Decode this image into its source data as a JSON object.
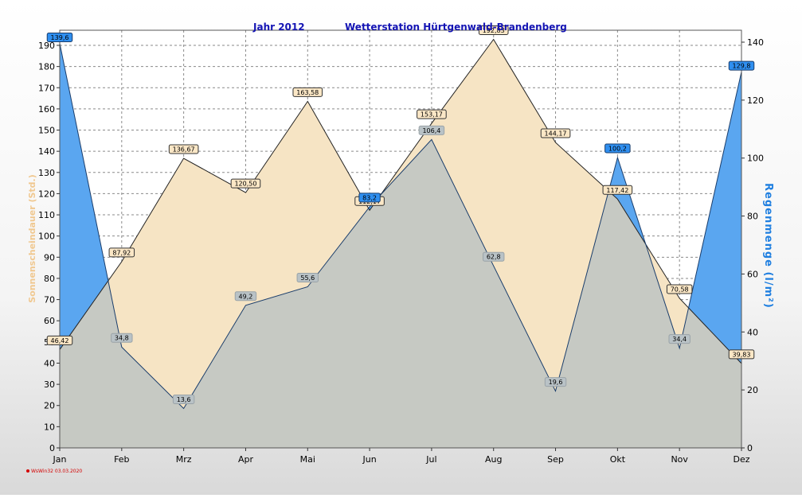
{
  "title_year": "Jahr  2012",
  "title_station": "Wetterstation Hürtgenwald-Brandenberg",
  "left_axis_label": "Sonnenscheindauer (Std.)",
  "right_axis_label": "Regenmenge  (l/m²)",
  "footer": "WsWin32  03.03.2020",
  "colors": {
    "sun_fill": "#f6e4c4",
    "rain_fill": "#5aa6f0",
    "overlap_fill": "#c6c9c3",
    "title": "#1414b4",
    "right_axis_label": "#1f7fe0",
    "left_axis_label": "#f0c890"
  },
  "chart_data": {
    "type": "area",
    "categories": [
      "Jan",
      "Feb",
      "Mrz",
      "Apr",
      "Mai",
      "Jun",
      "Jul",
      "Aug",
      "Sep",
      "Okt",
      "Nov",
      "Dez"
    ],
    "series": [
      {
        "name": "Sonnenscheindauer",
        "axis": "left",
        "values": [
          46.42,
          87.92,
          136.67,
          120.5,
          163.58,
          112.17,
          153.17,
          192.83,
          144.17,
          117.42,
          70.58,
          39.83
        ],
        "labels": [
          "46,42",
          "87,92",
          "136,67",
          "120,50",
          "163,58",
          "112,17",
          "153,17",
          "192,83",
          "144,17",
          "117,42",
          "70,58",
          "39,83"
        ]
      },
      {
        "name": "Regenmenge",
        "axis": "right",
        "values": [
          139.6,
          34.8,
          13.6,
          49.2,
          55.6,
          83.2,
          106.4,
          62.8,
          19.6,
          100.2,
          34.4,
          129.8
        ],
        "labels": [
          "139,6",
          "34,8",
          "13,6",
          "49,2",
          "55,6",
          "83,2",
          "106,4",
          "62,8",
          "19,6",
          "100,2",
          "34,4",
          "129,8"
        ]
      }
    ],
    "y_left": {
      "min": 0,
      "max": 190,
      "ticks": [
        "0",
        "10",
        "20",
        "30",
        "40",
        "50",
        "60",
        "70",
        "80",
        "90",
        "100",
        "110",
        "120",
        "130",
        "140",
        "150",
        "160",
        "170",
        "180",
        "190"
      ]
    },
    "y_right": {
      "min": 0,
      "max": 140,
      "ticks": [
        "0",
        "20",
        "40",
        "60",
        "80",
        "100",
        "120",
        "140"
      ]
    },
    "grid": true
  }
}
